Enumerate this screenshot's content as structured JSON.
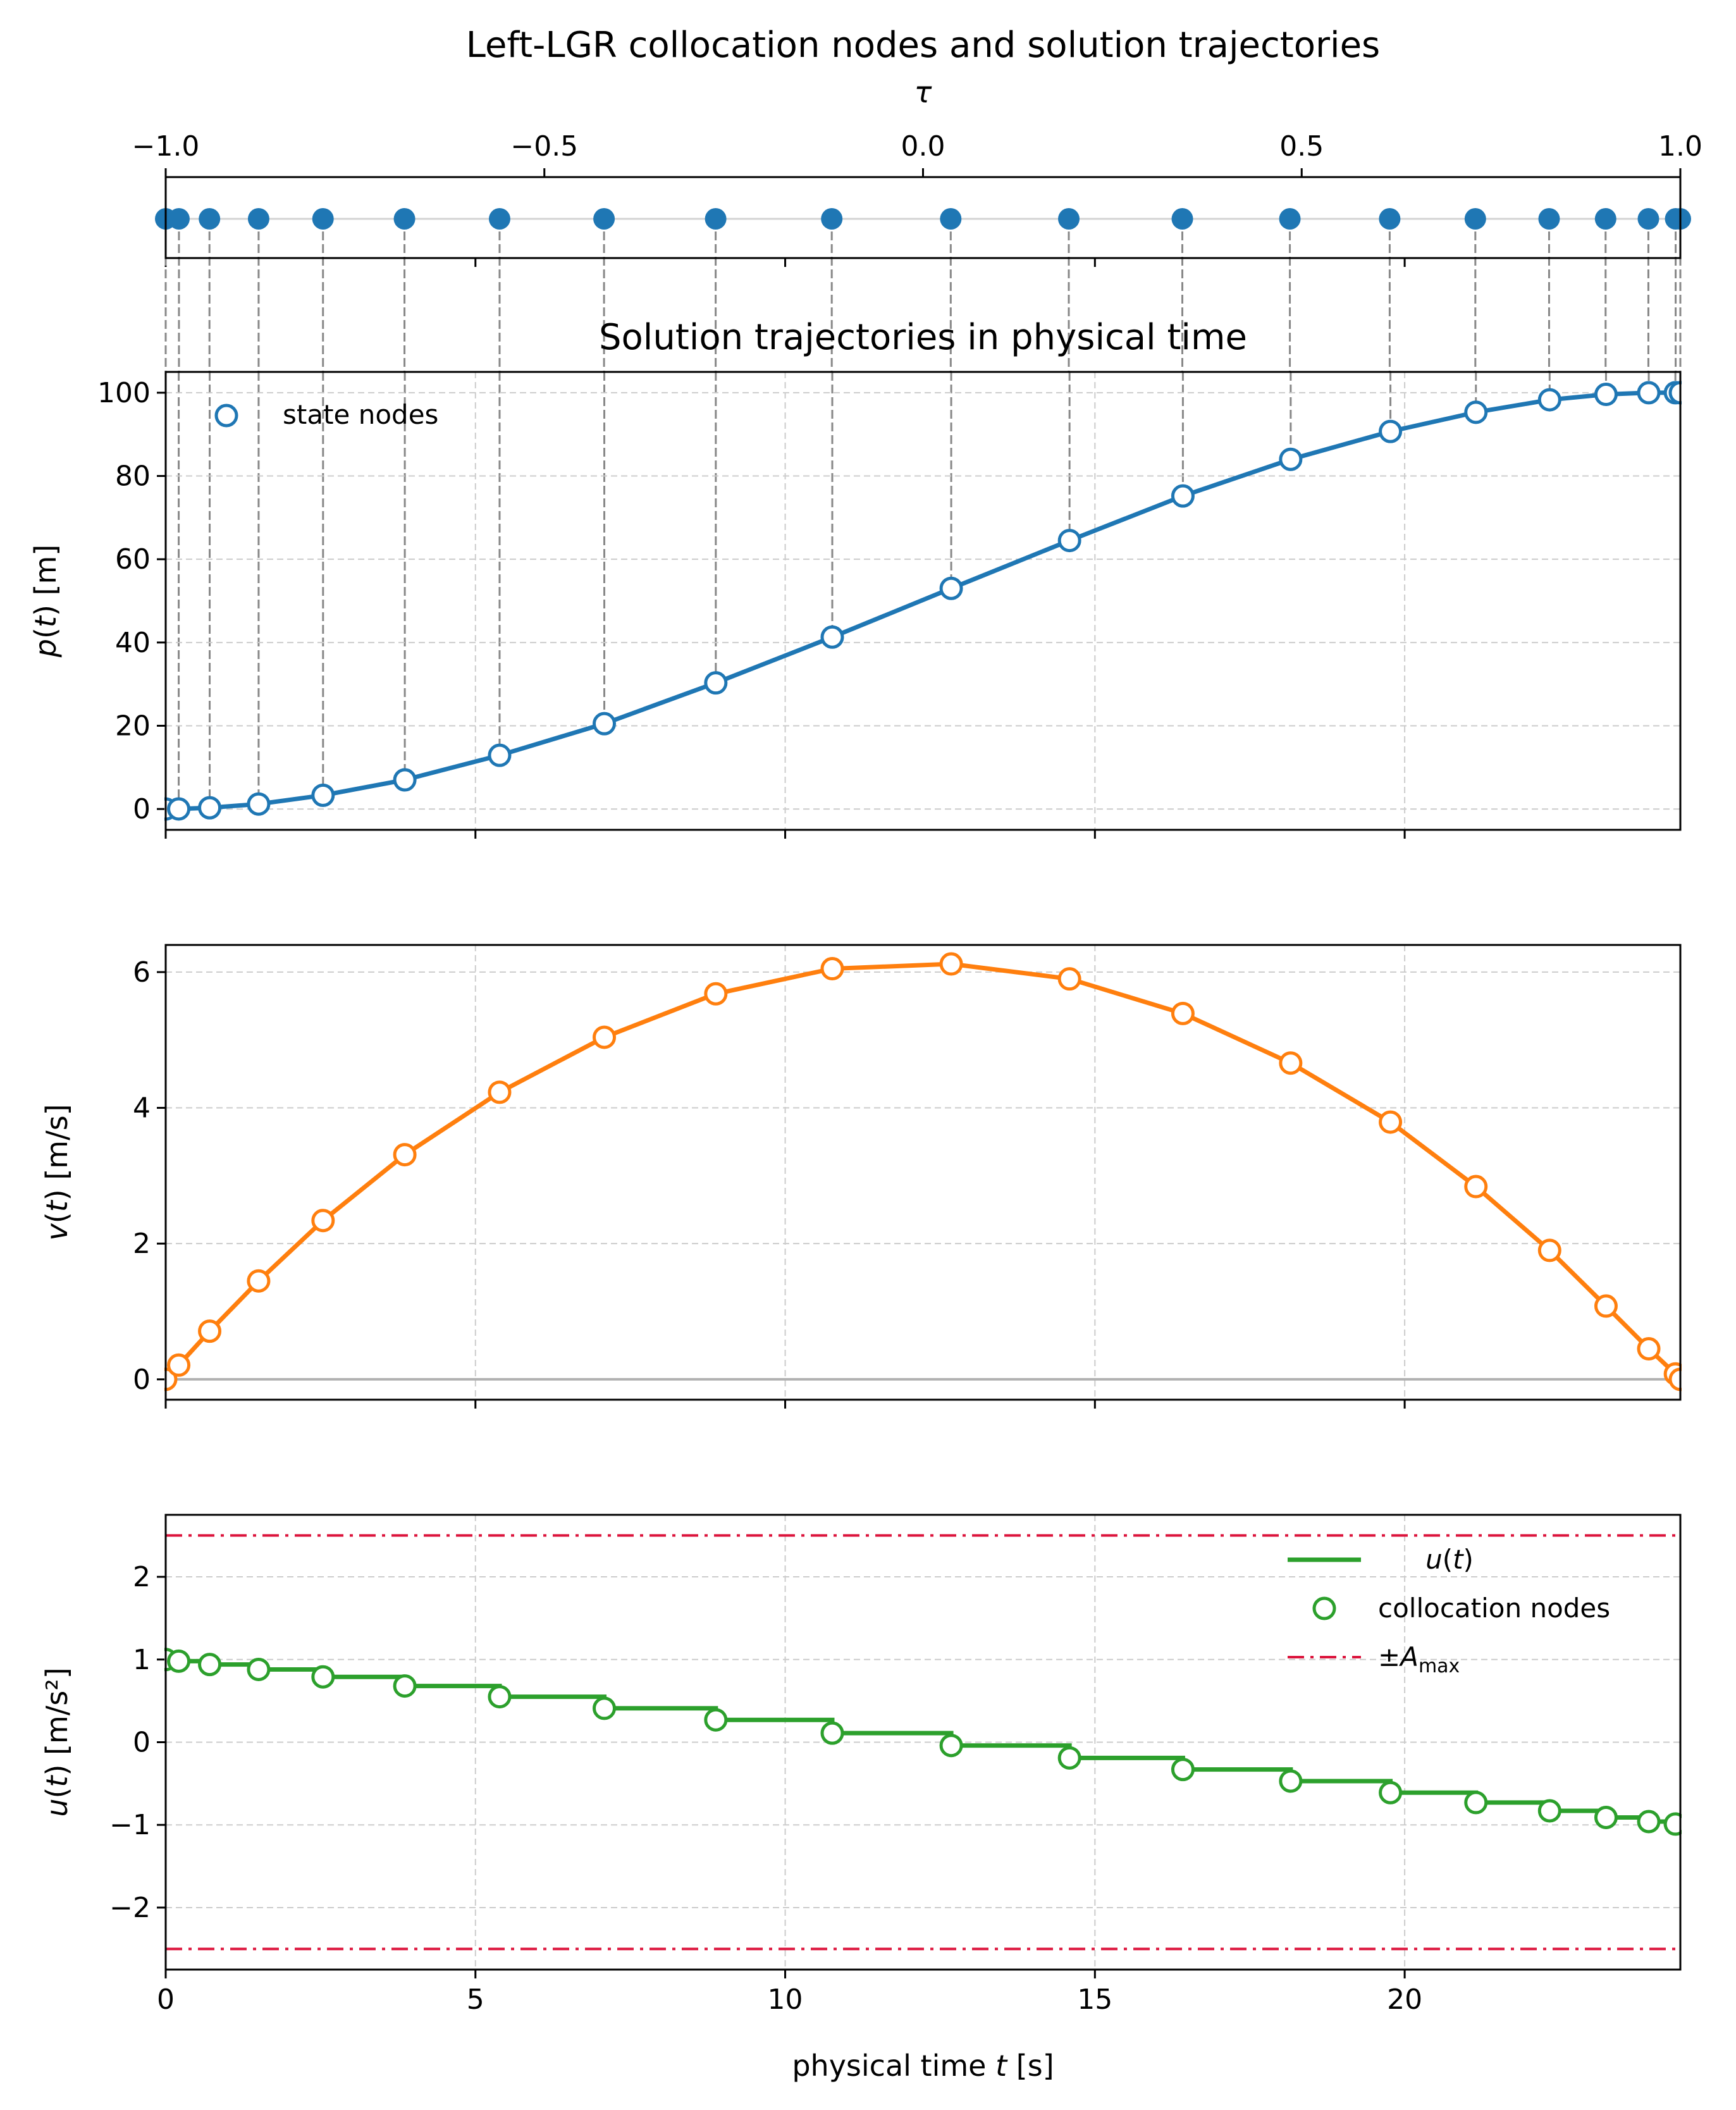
{
  "colors": {
    "blue": "#1f77b4",
    "orange": "#ff7f0e",
    "green": "#2ca02c",
    "crimson": "#dc143c",
    "grid": "#cccccc",
    "dropline": "#888888",
    "zero_line": "#b0b0b0"
  },
  "chart_data": [
    {
      "id": "tau_nodes",
      "type": "scatter",
      "title": "Left-LGR collocation nodes and solution trajectories",
      "xlabel": "τ",
      "xlim": [
        -1.0,
        1.0
      ],
      "xticks": [
        -1.0,
        -0.5,
        0.0,
        0.5,
        1.0
      ],
      "xtick_labels": [
        "−1.0",
        "−0.5",
        "0.0",
        "0.5",
        "1.0"
      ],
      "tau": [
        -1.0,
        -0.9825,
        -0.9422,
        -0.8773,
        -0.7923,
        -0.6847,
        -0.5591,
        -0.4212,
        -0.2738,
        -0.1205,
        0.0366,
        0.1925,
        0.3424,
        0.4844,
        0.6162,
        0.7293,
        0.8267,
        0.9013,
        0.9578,
        0.9938,
        1.0
      ]
    },
    {
      "id": "position",
      "type": "line",
      "title": "Solution trajectories in physical time",
      "ylabel": "p(t) [m]",
      "xlim": [
        0,
        24.45
      ],
      "ylim": [
        -5,
        105
      ],
      "yticks": [
        0,
        20,
        40,
        60,
        80,
        100
      ],
      "grid": true,
      "legend": {
        "position": "top-left",
        "label": "state nodes"
      },
      "t": [
        0.0,
        0.21,
        0.71,
        1.5,
        2.54,
        3.86,
        5.39,
        7.08,
        8.88,
        10.76,
        12.68,
        14.59,
        16.42,
        18.16,
        19.77,
        21.15,
        22.34,
        23.25,
        23.94,
        24.37,
        24.45
      ],
      "values": [
        0.0,
        0.02,
        0.3,
        1.2,
        3.3,
        7.0,
        12.9,
        20.5,
        30.3,
        41.3,
        53.0,
        64.5,
        75.2,
        84.0,
        90.7,
        95.3,
        98.3,
        99.6,
        100.0,
        100.0,
        100.0
      ]
    },
    {
      "id": "velocity",
      "type": "line",
      "ylabel": "v(t) [m/s]",
      "xlim": [
        0,
        24.45
      ],
      "ylim": [
        -0.3,
        6.4
      ],
      "yticks": [
        0,
        2,
        4,
        6
      ],
      "grid": true,
      "t": [
        0.0,
        0.21,
        0.71,
        1.5,
        2.54,
        3.86,
        5.39,
        7.08,
        8.88,
        10.76,
        12.68,
        14.59,
        16.42,
        18.16,
        19.77,
        21.15,
        22.34,
        23.25,
        23.94,
        24.37,
        24.45
      ],
      "values": [
        0.0,
        0.21,
        0.71,
        1.45,
        2.34,
        3.31,
        4.23,
        5.04,
        5.68,
        6.05,
        6.12,
        5.9,
        5.39,
        4.66,
        3.79,
        2.84,
        1.9,
        1.08,
        0.45,
        0.08,
        0.0
      ]
    },
    {
      "id": "control",
      "type": "line",
      "ylabel": "u(t) [m/s²]",
      "xlabel": "physical time t [s]",
      "xlim": [
        0,
        24.45
      ],
      "xticks": [
        0,
        5,
        10,
        15,
        20
      ],
      "ylim": [
        -2.75,
        2.75
      ],
      "yticks": [
        -2,
        -1,
        0,
        1,
        2
      ],
      "ytick_labels": [
        "−2",
        "−1",
        "0",
        "1",
        "2"
      ],
      "grid": true,
      "a_max": 2.5,
      "legend": {
        "position": "top-right",
        "labels": [
          "u(t)",
          "collocation nodes",
          "±A"
        ],
        "subscript": "max"
      },
      "t": [
        0.0,
        0.21,
        0.71,
        1.5,
        2.54,
        3.86,
        5.39,
        7.08,
        8.88,
        10.76,
        12.68,
        14.59,
        16.42,
        18.16,
        19.77,
        21.15,
        22.34,
        23.25,
        23.94,
        24.37
      ],
      "values": [
        1.0,
        0.98,
        0.94,
        0.88,
        0.79,
        0.68,
        0.55,
        0.41,
        0.27,
        0.11,
        -0.04,
        -0.19,
        -0.33,
        -0.47,
        -0.61,
        -0.73,
        -0.83,
        -0.91,
        -0.96,
        -0.99
      ]
    }
  ]
}
